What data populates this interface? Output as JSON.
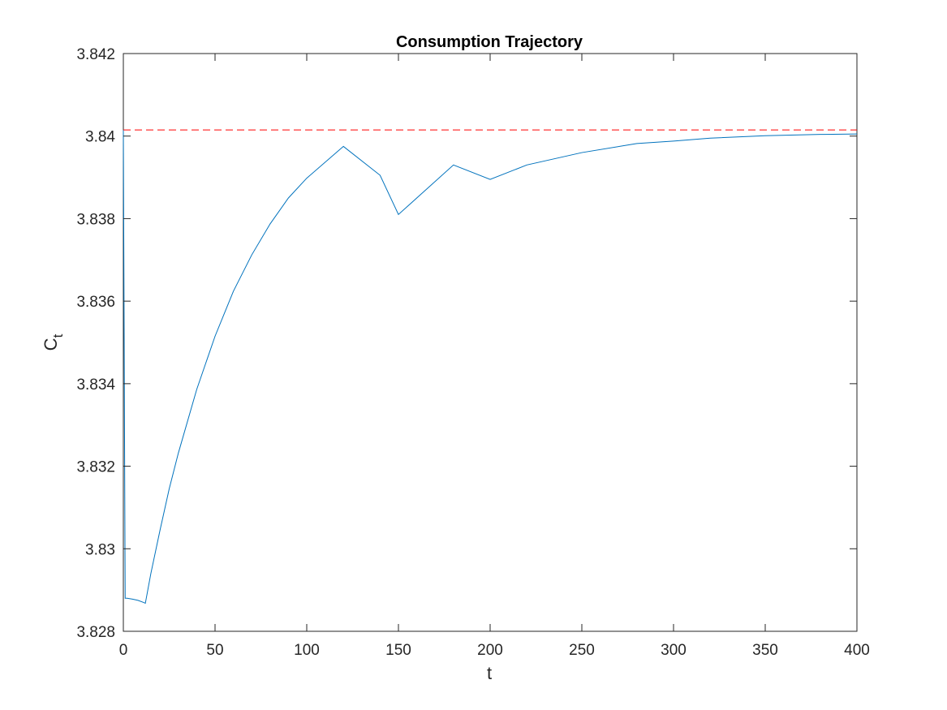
{
  "chart_data": {
    "type": "line",
    "title": "Consumption Trajectory",
    "xlabel": "t",
    "ylabel": "C",
    "ylabel_subscript": "t",
    "xlim": [
      0,
      400
    ],
    "ylim": [
      3.828,
      3.842
    ],
    "xticks": [
      0,
      50,
      100,
      150,
      200,
      250,
      300,
      350,
      400
    ],
    "xtick_labels": [
      "0",
      "50",
      "100",
      "150",
      "200",
      "250",
      "300",
      "350",
      "400"
    ],
    "yticks": [
      3.828,
      3.83,
      3.832,
      3.834,
      3.836,
      3.838,
      3.84,
      3.842
    ],
    "ytick_labels": [
      "3.828",
      "3.83",
      "3.832",
      "3.834",
      "3.836",
      "3.838",
      "3.84",
      "3.842"
    ],
    "grid": false,
    "box": true,
    "series": [
      {
        "color": "#0072BD",
        "style": "solid",
        "x": [
          0,
          1,
          2,
          5,
          8,
          11,
          12,
          15,
          20,
          25,
          30,
          40,
          50,
          60,
          70,
          80,
          90,
          100,
          120,
          140,
          150,
          160,
          180,
          200,
          220,
          250,
          280,
          300,
          320,
          350,
          380,
          400
        ],
        "y": [
          3.84015,
          3.8288,
          3.8288,
          3.82878,
          3.82875,
          3.8287,
          3.82868,
          3.8294,
          3.83045,
          3.83145,
          3.83232,
          3.83386,
          3.83515,
          3.83624,
          3.83712,
          3.83787,
          3.8385,
          3.83898,
          3.83975,
          3.83905,
          3.8381,
          3.8385,
          3.8393,
          3.83895,
          3.8393,
          3.8396,
          3.83982,
          3.83988,
          3.83995,
          3.84001,
          3.84004,
          3.84005
        ]
      },
      {
        "color": "#FF0000",
        "style": "dashed",
        "x": [
          0,
          400
        ],
        "y": [
          3.84015,
          3.84015
        ]
      }
    ]
  }
}
